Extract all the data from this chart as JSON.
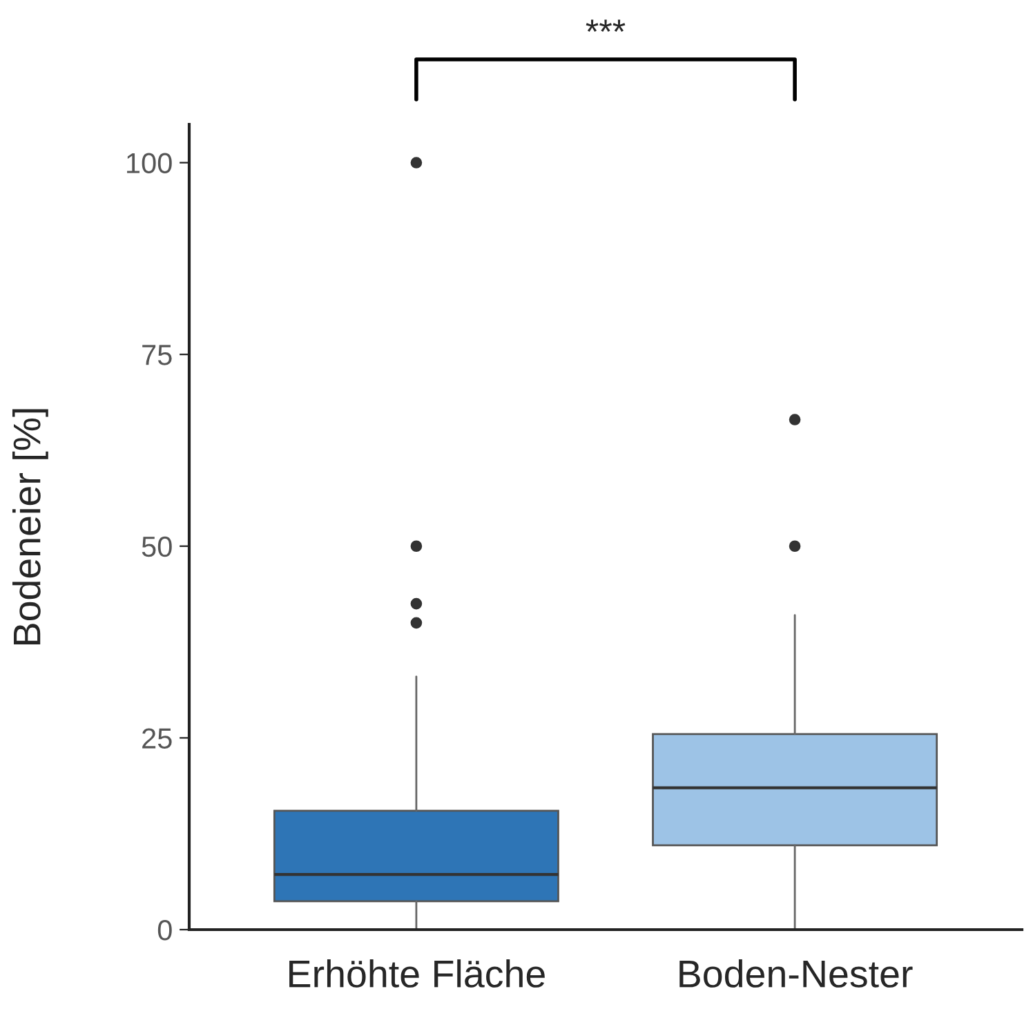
{
  "chart_data": {
    "type": "box",
    "ylabel": "Bodeneier [%]",
    "categories": [
      "Erhöhte Fläche",
      "Boden-Nester"
    ],
    "colors": [
      "#2e75b6",
      "#9dc3e6"
    ],
    "boxes": [
      {
        "low": 0,
        "q1": 3.7,
        "median": 7.2,
        "q3": 15.5,
        "high": 33,
        "outliers": [
          100,
          50,
          42.5,
          40
        ]
      },
      {
        "low": 0,
        "q1": 11,
        "median": 18.5,
        "q3": 25.5,
        "high": 41,
        "outliers": [
          66.5,
          50
        ]
      }
    ],
    "ylim": [
      0,
      105
    ],
    "yticks": [
      0,
      25,
      50,
      75,
      100
    ],
    "grid": false,
    "annotations": [
      "***"
    ]
  }
}
